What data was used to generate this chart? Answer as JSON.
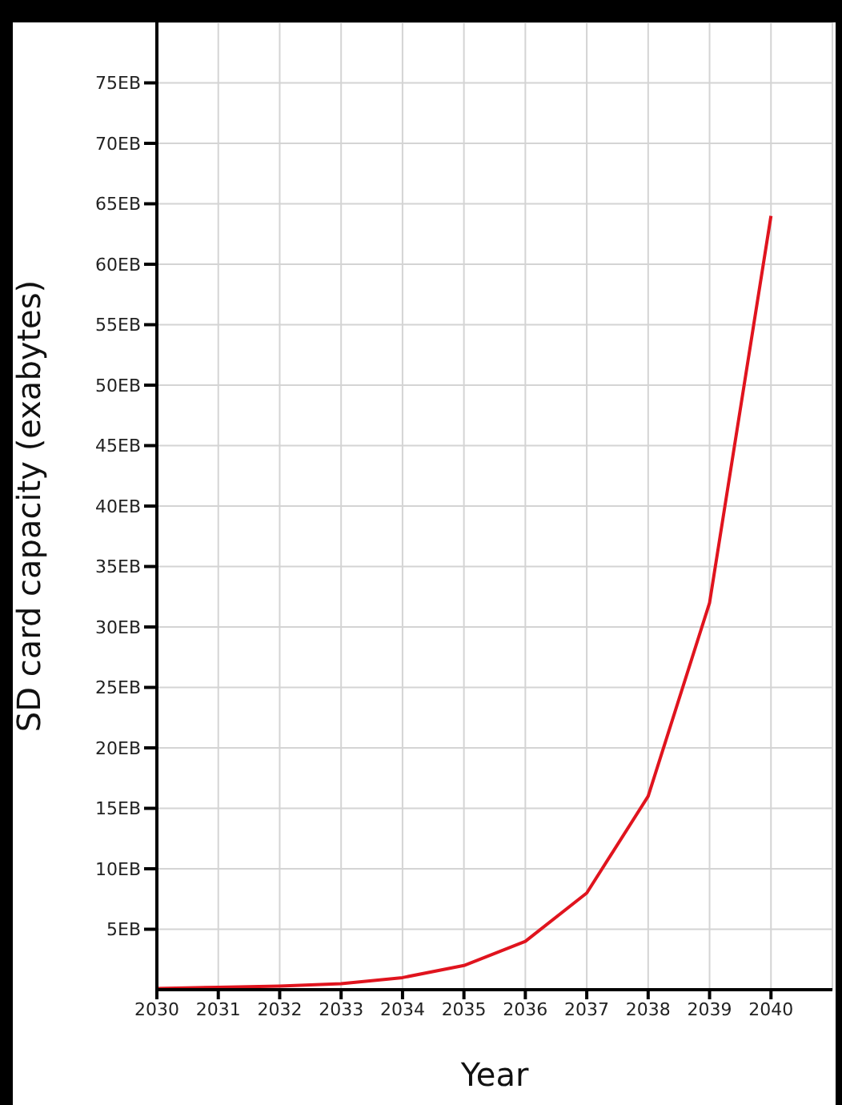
{
  "chart_data": {
    "type": "line",
    "xlabel": "Year",
    "ylabel": "SD card capacity (exabytes)",
    "x": [
      2030,
      2031,
      2032,
      2033,
      2034,
      2035,
      2036,
      2037,
      2038,
      2039,
      2040
    ],
    "series": [
      {
        "color": "#e0141e",
        "values": [
          0.1,
          0.2,
          0.3,
          0.5,
          1,
          2,
          4,
          8,
          16,
          32,
          64
        ]
      }
    ],
    "xlim": [
      2030,
      2041
    ],
    "xticks": [
      2030,
      2031,
      2032,
      2033,
      2034,
      2035,
      2036,
      2037,
      2038,
      2039,
      2040
    ],
    "ylim": [
      0,
      80
    ],
    "yticks": [
      {
        "value": 5,
        "label": "5EB"
      },
      {
        "value": 10,
        "label": "10EB"
      },
      {
        "value": 15,
        "label": "15EB"
      },
      {
        "value": 20,
        "label": "20EB"
      },
      {
        "value": 25,
        "label": "25EB"
      },
      {
        "value": 30,
        "label": "30EB"
      },
      {
        "value": 35,
        "label": "35EB"
      },
      {
        "value": 40,
        "label": "40EB"
      },
      {
        "value": 45,
        "label": "45EB"
      },
      {
        "value": 50,
        "label": "50EB"
      },
      {
        "value": 55,
        "label": "55EB"
      },
      {
        "value": 60,
        "label": "60EB"
      },
      {
        "value": 65,
        "label": "65EB"
      },
      {
        "value": 70,
        "label": "70EB"
      },
      {
        "value": 75,
        "label": "75EB"
      }
    ],
    "grid": true,
    "marker": "none",
    "line_style": "solid"
  }
}
